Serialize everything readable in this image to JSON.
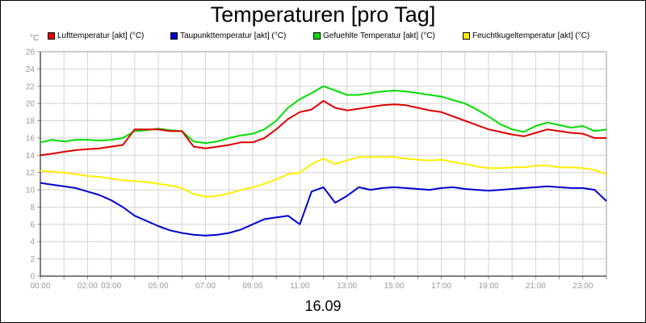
{
  "chart_data": {
    "type": "line",
    "title": "Temperaturen [pro Tag]",
    "date_label": "16.09",
    "y_unit": "°C",
    "ylim": [
      0,
      26
    ],
    "y_ticks": [
      0,
      2,
      4,
      6,
      8,
      10,
      12,
      14,
      16,
      18,
      20,
      22,
      24,
      26
    ],
    "x_range_hours": [
      0,
      24
    ],
    "x_tick_labels": [
      {
        "label": "00:00",
        "h": 0
      },
      {
        "label": "02:00",
        "h": 2
      },
      {
        "label": "03:00",
        "h": 3
      },
      {
        "label": "05:00",
        "h": 5
      },
      {
        "label": "07:00",
        "h": 7
      },
      {
        "label": "09:00",
        "h": 9
      },
      {
        "label": "11:00",
        "h": 11
      },
      {
        "label": "13:00",
        "h": 13
      },
      {
        "label": "15:00",
        "h": 15
      },
      {
        "label": "17:00",
        "h": 17
      },
      {
        "label": "19:00",
        "h": 19
      },
      {
        "label": "21:00",
        "h": 21
      },
      {
        "label": "23:00",
        "h": 23
      }
    ],
    "grid": true,
    "legend_position": "top",
    "series": [
      {
        "name": "Lufttemperatur [akt] (°C)",
        "color": "#e00000",
        "x": [
          0,
          0.5,
          1,
          1.5,
          2,
          2.5,
          3,
          3.5,
          4,
          4.5,
          5,
          5.5,
          6,
          6.5,
          7,
          7.5,
          8,
          8.5,
          9,
          9.5,
          10,
          10.5,
          11,
          11.5,
          12,
          12.5,
          13,
          13.5,
          14,
          14.5,
          15,
          15.5,
          16,
          16.5,
          17,
          17.5,
          18,
          18.5,
          19,
          19.5,
          20,
          20.5,
          21,
          21.5,
          22,
          22.5,
          23,
          23.5,
          24
        ],
        "values": [
          14,
          14.2,
          14.4,
          14.6,
          14.7,
          14.8,
          15,
          15.2,
          17,
          17,
          17,
          16.8,
          16.8,
          15,
          14.8,
          15,
          15.2,
          15.5,
          15.5,
          16,
          17,
          18.2,
          19,
          19.3,
          20.3,
          19.5,
          19.2,
          19.4,
          19.6,
          19.8,
          19.9,
          19.8,
          19.5,
          19.2,
          19,
          18.5,
          18,
          17.5,
          17,
          16.7,
          16.4,
          16.2,
          16.6,
          17,
          16.8,
          16.6,
          16.5,
          16,
          16
        ]
      },
      {
        "name": "Taupunkttemperatur [akt] (°C)",
        "color": "#0000d0",
        "x": [
          0,
          0.5,
          1,
          1.5,
          2,
          2.5,
          3,
          3.5,
          4,
          4.5,
          5,
          5.5,
          6,
          6.5,
          7,
          7.5,
          8,
          8.5,
          9,
          9.5,
          10,
          10.5,
          11,
          11.5,
          12,
          12.5,
          13,
          13.5,
          14,
          14.5,
          15,
          15.5,
          16,
          16.5,
          17,
          17.5,
          18,
          18.5,
          19,
          19.5,
          20,
          20.5,
          21,
          21.5,
          22,
          22.5,
          23,
          23.5,
          24
        ],
        "values": [
          10.8,
          10.6,
          10.4,
          10.2,
          9.8,
          9.4,
          8.8,
          8,
          7,
          6.4,
          5.8,
          5.3,
          5,
          4.8,
          4.7,
          4.8,
          5,
          5.4,
          6,
          6.6,
          6.8,
          7,
          6,
          9.8,
          10.3,
          8.5,
          9.3,
          10.3,
          10,
          10.2,
          10.3,
          10.2,
          10.1,
          10,
          10.2,
          10.3,
          10.1,
          10,
          9.9,
          10,
          10.1,
          10.2,
          10.3,
          10.4,
          10.3,
          10.2,
          10.2,
          10,
          8.7
        ]
      },
      {
        "name": "Gefuehlte Temperatur [akt] (°C)",
        "color": "#00dd00",
        "x": [
          0,
          0.5,
          1,
          1.5,
          2,
          2.5,
          3,
          3.5,
          4,
          4.5,
          5,
          5.5,
          6,
          6.5,
          7,
          7.5,
          8,
          8.5,
          9,
          9.5,
          10,
          10.5,
          11,
          11.5,
          12,
          12.5,
          13,
          13.5,
          14,
          14.5,
          15,
          15.5,
          16,
          16.5,
          17,
          17.5,
          18,
          18.5,
          19,
          19.5,
          20,
          20.5,
          21,
          21.5,
          22,
          22.5,
          23,
          23.5,
          24
        ],
        "values": [
          15.5,
          15.8,
          15.6,
          15.8,
          15.8,
          15.7,
          15.8,
          16,
          16.8,
          16.9,
          17.1,
          16.9,
          16.8,
          15.6,
          15.4,
          15.6,
          16,
          16.3,
          16.5,
          17,
          18,
          19.5,
          20.5,
          21.2,
          22,
          21.5,
          21,
          21,
          21.2,
          21.4,
          21.5,
          21.4,
          21.2,
          21,
          20.8,
          20.4,
          20,
          19.3,
          18.5,
          17.6,
          17,
          16.7,
          17.4,
          17.8,
          17.5,
          17.2,
          17.4,
          16.8,
          17
        ]
      },
      {
        "name": "Feuchtkugeltemperatur [akt] (°C)",
        "color": "#ffee00",
        "x": [
          0,
          0.5,
          1,
          1.5,
          2,
          2.5,
          3,
          3.5,
          4,
          4.5,
          5,
          5.5,
          6,
          6.5,
          7,
          7.5,
          8,
          8.5,
          9,
          9.5,
          10,
          10.5,
          11,
          11.5,
          12,
          12.5,
          13,
          13.5,
          14,
          14.5,
          15,
          15.5,
          16,
          16.5,
          17,
          17.5,
          18,
          18.5,
          19,
          19.5,
          20,
          20.5,
          21,
          21.5,
          22,
          22.5,
          23,
          23.5,
          24
        ],
        "values": [
          12.2,
          12.1,
          12,
          11.8,
          11.6,
          11.5,
          11.3,
          11.1,
          11,
          10.9,
          10.7,
          10.5,
          10.2,
          9.5,
          9.2,
          9.3,
          9.6,
          10,
          10.3,
          10.7,
          11.2,
          11.8,
          12,
          13,
          13.6,
          13,
          13.4,
          13.8,
          13.8,
          13.8,
          13.8,
          13.6,
          13.5,
          13.4,
          13.5,
          13.2,
          13,
          12.7,
          12.5,
          12.5,
          12.6,
          12.6,
          12.8,
          12.8,
          12.6,
          12.6,
          12.5,
          12.3,
          11.8
        ]
      }
    ]
  }
}
